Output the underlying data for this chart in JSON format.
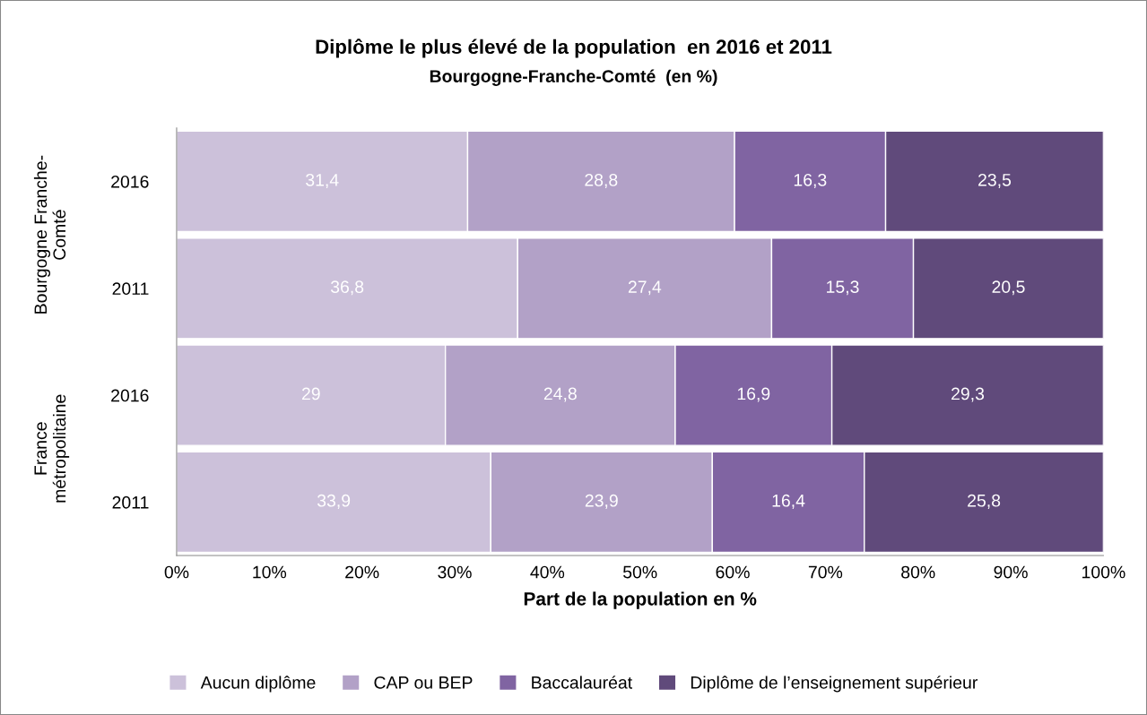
{
  "chart_data": {
    "type": "bar",
    "orientation": "horizontal",
    "stacked": true,
    "title": "Diplôme le plus élevé de la population  en 2016 et 2011",
    "subtitle": "Bourgogne-Franche-Comté  (en %)",
    "xlabel": "Part de la population en %",
    "categories": [
      "2016",
      "2011",
      "2016",
      "2011"
    ],
    "annotations": [
      "Bourgogne Franche-\nComté",
      "France\nmétropolitaine"
    ],
    "series": [
      {
        "name": "Aucun diplôme",
        "color": "#ccc1da",
        "values": [
          31.4,
          36.8,
          29,
          33.9
        ],
        "value_labels": [
          "31,4",
          "36,8",
          "29",
          "33,9"
        ]
      },
      {
        "name": "CAP ou BEP",
        "color": "#b2a1c7",
        "values": [
          28.8,
          27.4,
          24.8,
          23.9
        ],
        "value_labels": [
          "28,8",
          "27,4",
          "24,8",
          "23,9"
        ]
      },
      {
        "name": "Baccalauréat",
        "color": "#8064a2",
        "values": [
          16.3,
          15.3,
          16.9,
          16.4
        ],
        "value_labels": [
          "16,3",
          "15,3",
          "16,9",
          "16,4"
        ]
      },
      {
        "name": "Diplôme de l’enseignement supérieur",
        "color": "#604a7b",
        "values": [
          23.5,
          20.5,
          29.3,
          25.8
        ],
        "value_labels": [
          "23,5",
          "20,5",
          "29,3",
          "25,8"
        ]
      }
    ],
    "xlim": [
      0,
      100
    ],
    "xticks": [
      {
        "value": 0,
        "label": "0%"
      },
      {
        "value": 10,
        "label": "10%"
      },
      {
        "value": 20,
        "label": "20%"
      },
      {
        "value": 30,
        "label": "30%"
      },
      {
        "value": 40,
        "label": "40%"
      },
      {
        "value": 50,
        "label": "50%"
      },
      {
        "value": 60,
        "label": "60%"
      },
      {
        "value": 70,
        "label": "70%"
      },
      {
        "value": 80,
        "label": "80%"
      },
      {
        "value": 90,
        "label": "90%"
      },
      {
        "value": 100,
        "label": "100%"
      }
    ],
    "legend": "bottom",
    "grid": false
  }
}
